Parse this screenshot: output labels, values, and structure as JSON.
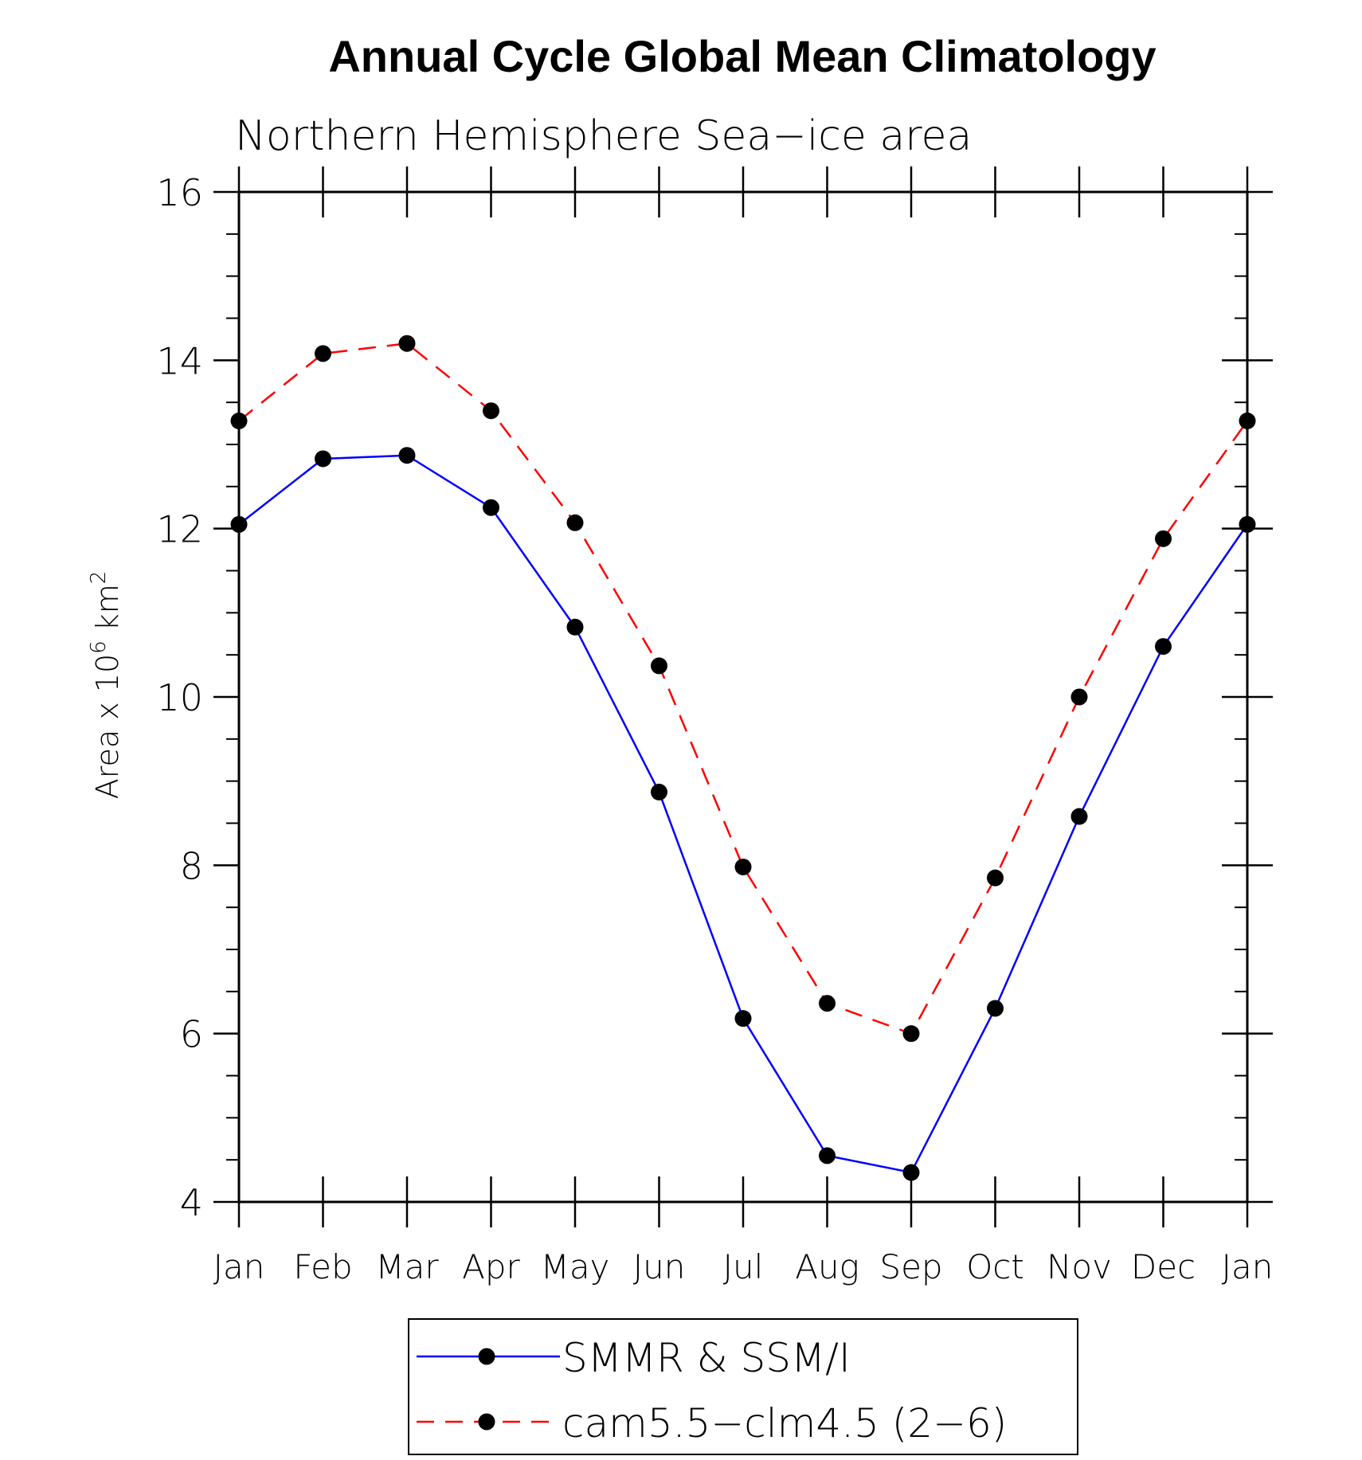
{
  "chart_data": {
    "type": "line",
    "title": "Annual Cycle Global Mean Climatology",
    "subtitle": "Northern Hemisphere Sea−ice area",
    "xlabel": "",
    "ylabel": "Area x 10",
    "ylabel_sup": "6",
    "ylabel_unit": "km",
    "ylabel_unit_sup": "2",
    "categories": [
      "Jan",
      "Feb",
      "Mar",
      "Apr",
      "May",
      "Jun",
      "Jul",
      "Aug",
      "Sep",
      "Oct",
      "Nov",
      "Dec",
      "Jan"
    ],
    "ylim": [
      4,
      16
    ],
    "yticks": [
      4,
      6,
      8,
      10,
      12,
      14,
      16
    ],
    "y_minor_step": 0.5,
    "grid": false,
    "legend_position": "bottom-center",
    "series": [
      {
        "name": "SMMR & SSM/I",
        "color": "#0000ff",
        "dash": "solid",
        "marker": "filled-circle",
        "values": [
          12.05,
          12.83,
          12.87,
          12.25,
          10.83,
          8.87,
          6.18,
          4.55,
          4.35,
          6.3,
          8.58,
          10.6,
          12.05
        ]
      },
      {
        "name": "cam5.5−clm4.5 (2−6)",
        "color": "#ff0000",
        "dash": "dashed",
        "marker": "filled-circle",
        "values": [
          13.28,
          14.08,
          14.2,
          13.4,
          12.07,
          10.37,
          7.98,
          6.36,
          6.0,
          7.85,
          10.0,
          11.88,
          13.28
        ]
      }
    ]
  }
}
